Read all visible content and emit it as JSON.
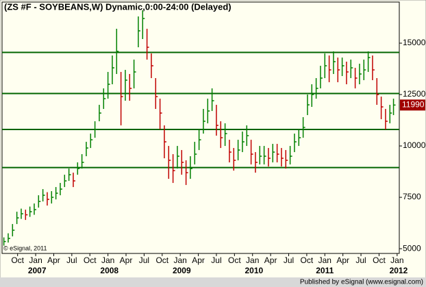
{
  "chart_data": {
    "type": "ohlc",
    "title": "(ZS #F - SOYBEANS,W) Dynamic,0:00-24:00 (Delayed)",
    "copyright": "© eSignal, 2011",
    "footer": "Published by eSignal (www.esignal.com)",
    "last_price": 11990,
    "last_color": "#a00000",
    "up_color": "#008000",
    "down_color": "#c00000",
    "level_color": "#006400",
    "levels": [
      14550,
      12550,
      10800,
      8950
    ],
    "xlim": [
      2006.535,
      2012.03
    ],
    "ylim": [
      4770,
      17000
    ],
    "yticks": [
      5000,
      7500,
      10000,
      12500,
      15000
    ],
    "xticks": [
      {
        "value": 2006.75,
        "label": "Oct"
      },
      {
        "value": 2007.0,
        "label": "Jan"
      },
      {
        "value": 2007.25,
        "label": "Apr"
      },
      {
        "value": 2007.5,
        "label": "Jul"
      },
      {
        "value": 2007.75,
        "label": "Oct"
      },
      {
        "value": 2008.0,
        "label": "Jan"
      },
      {
        "value": 2008.25,
        "label": "Apr"
      },
      {
        "value": 2008.5,
        "label": "Jul"
      },
      {
        "value": 2008.75,
        "label": "Oct"
      },
      {
        "value": 2009.0,
        "label": "Jan"
      },
      {
        "value": 2009.25,
        "label": "Apr"
      },
      {
        "value": 2009.5,
        "label": "Jul"
      },
      {
        "value": 2009.75,
        "label": "Oct"
      },
      {
        "value": 2010.0,
        "label": "Jan"
      },
      {
        "value": 2010.25,
        "label": "Apr"
      },
      {
        "value": 2010.5,
        "label": "Jul"
      },
      {
        "value": 2010.75,
        "label": "Oct"
      },
      {
        "value": 2011.0,
        "label": "Jan"
      },
      {
        "value": 2011.25,
        "label": "Apr"
      },
      {
        "value": 2011.5,
        "label": "Jul"
      },
      {
        "value": 2011.75,
        "label": "Oct"
      },
      {
        "value": 2012.0,
        "label": "Jan"
      }
    ],
    "year_labels": [
      {
        "value": 2007.02,
        "label": "2007"
      },
      {
        "value": 2008.02,
        "label": "2008"
      },
      {
        "value": 2009.02,
        "label": "2009"
      },
      {
        "value": 2010.02,
        "label": "2010"
      },
      {
        "value": 2011.0,
        "label": "2011"
      },
      {
        "value": 2012.02,
        "label": "2012"
      }
    ],
    "x": [
      2006.56,
      2006.62,
      2006.68,
      2006.74,
      2006.8,
      2006.86,
      2006.92,
      2006.98,
      2007.04,
      2007.1,
      2007.16,
      2007.22,
      2007.28,
      2007.34,
      2007.4,
      2007.46,
      2007.52,
      2007.58,
      2007.64,
      2007.7,
      2007.76,
      2007.82,
      2007.88,
      2007.94,
      2008.0,
      2008.06,
      2008.12,
      2008.18,
      2008.24,
      2008.3,
      2008.36,
      2008.42,
      2008.48,
      2008.54,
      2008.6,
      2008.66,
      2008.72,
      2008.78,
      2008.84,
      2008.9,
      2008.96,
      2009.02,
      2009.08,
      2009.14,
      2009.2,
      2009.26,
      2009.32,
      2009.38,
      2009.44,
      2009.5,
      2009.56,
      2009.62,
      2009.68,
      2009.74,
      2009.8,
      2009.86,
      2009.92,
      2009.98,
      2010.04,
      2010.1,
      2010.16,
      2010.22,
      2010.28,
      2010.34,
      2010.4,
      2010.46,
      2010.52,
      2010.58,
      2010.64,
      2010.7,
      2010.76,
      2010.82,
      2010.88,
      2010.94,
      2011.0,
      2011.06,
      2011.12,
      2011.18,
      2011.24,
      2011.3,
      2011.36,
      2011.42,
      2011.48,
      2011.54,
      2011.6,
      2011.66,
      2011.72,
      2011.78,
      2011.84,
      2011.9,
      2011.95
    ],
    "close": [
      5350,
      5500,
      5900,
      6500,
      6700,
      6650,
      6800,
      6900,
      7300,
      7600,
      7400,
      7500,
      7700,
      7900,
      8300,
      8600,
      8300,
      8900,
      9200,
      9900,
      10300,
      10800,
      11600,
      12300,
      13000,
      13800,
      14600,
      12400,
      13200,
      12800,
      13600,
      15600,
      16200,
      14800,
      13900,
      12400,
      11600,
      10200,
      9300,
      8800,
      9500,
      9200,
      8700,
      8900,
      9600,
      10300,
      11200,
      11700,
      12200,
      11000,
      10400,
      10600,
      9700,
      9300,
      9800,
      10200,
      10500,
      9600,
      9200,
      9500,
      9500,
      9400,
      9700,
      9600,
      9400,
      9300,
      9500,
      10200,
      10400,
      10900,
      12000,
      12500,
      12800,
      13300,
      13900,
      13700,
      14100,
      13700,
      13900,
      13600,
      13800,
      13300,
      13500,
      13700,
      14300,
      13700,
      12500,
      11900,
      11200,
      11600,
      11990
    ],
    "high": [
      5550,
      5750,
      6200,
      6800,
      6950,
      6900,
      7050,
      7200,
      7600,
      7900,
      7750,
      7800,
      8000,
      8200,
      8600,
      8900,
      8700,
      9200,
      9600,
      10200,
      10600,
      11200,
      12000,
      12800,
      13600,
      14400,
      15700,
      13600,
      13700,
      13500,
      14200,
      16300,
      16600,
      15700,
      14500,
      13300,
      12300,
      11000,
      10000,
      9600,
      10000,
      9800,
      9300,
      9500,
      10200,
      10800,
      11800,
      12300,
      12800,
      12000,
      11200,
      11100,
      10300,
      9900,
      10300,
      10700,
      11000,
      10300,
      9700,
      10000,
      10000,
      9900,
      10100,
      10100,
      9900,
      9800,
      10000,
      10600,
      10800,
      11400,
      12500,
      13000,
      13300,
      13900,
      14500,
      14400,
      14600,
      14300,
      14300,
      14100,
      14200,
      13800,
      14000,
      14200,
      14600,
      14400,
      13300,
      12400,
      11800,
      12000,
      12300
    ],
    "low": [
      5150,
      5300,
      5600,
      6200,
      6450,
      6400,
      6550,
      6650,
      7000,
      7300,
      7100,
      7200,
      7400,
      7600,
      8000,
      8300,
      8000,
      8600,
      8900,
      9500,
      9900,
      10400,
      11200,
      11800,
      12300,
      13000,
      13500,
      11000,
      12200,
      12200,
      12800,
      14800,
      15200,
      14200,
      13300,
      11800,
      10800,
      9400,
      8400,
      8200,
      8900,
      8600,
      8100,
      8400,
      9100,
      9800,
      10600,
      11100,
      11700,
      10500,
      9900,
      10000,
      9200,
      8800,
      9300,
      9700,
      10000,
      9100,
      8700,
      9100,
      9100,
      9000,
      9200,
      9200,
      9000,
      8900,
      9100,
      9700,
      10000,
      10400,
      11500,
      11900,
      12300,
      12800,
      13300,
      13100,
      13500,
      13100,
      13400,
      13000,
      13300,
      12800,
      13000,
      13200,
      13600,
      13200,
      12000,
      11300,
      10800,
      11100,
      11500
    ]
  }
}
